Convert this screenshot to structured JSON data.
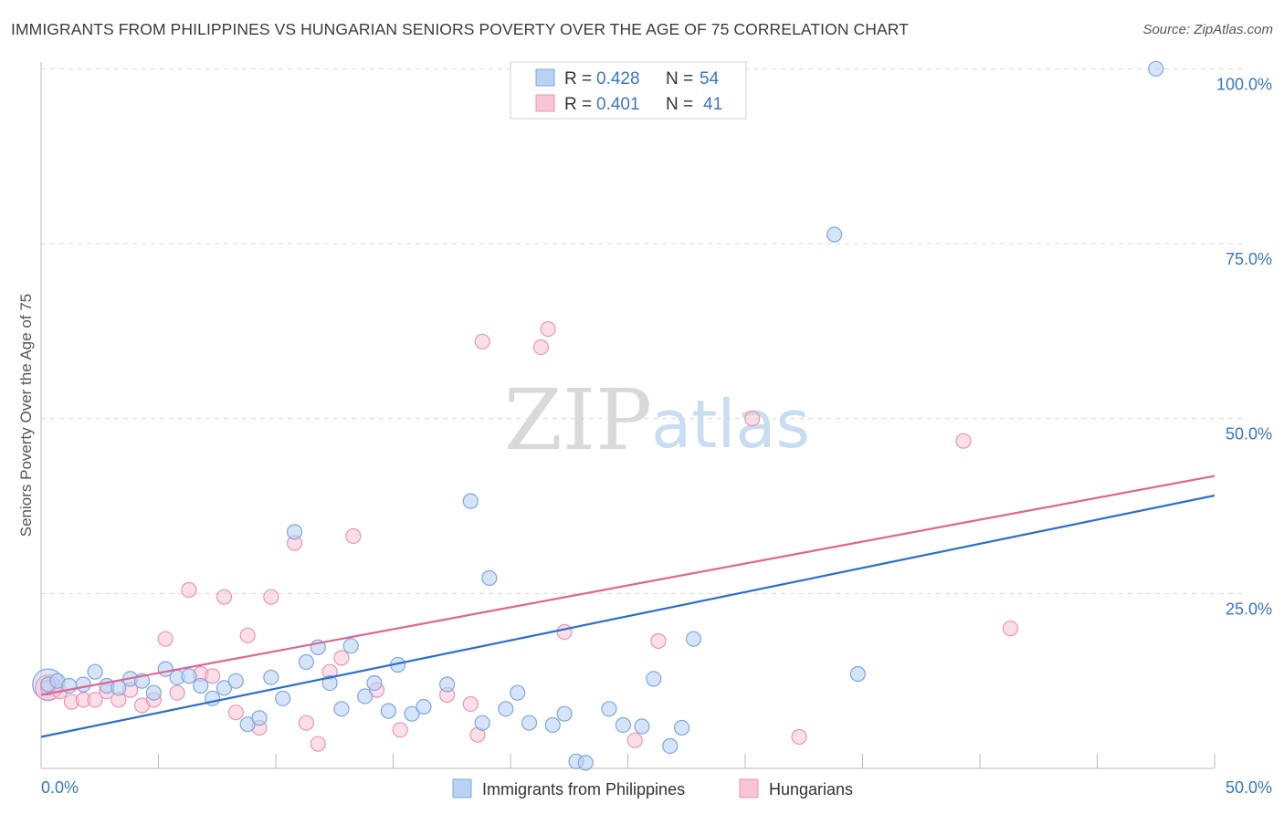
{
  "title": "IMMIGRANTS FROM PHILIPPINES VS HUNGARIAN SENIORS POVERTY OVER THE AGE OF 75 CORRELATION CHART",
  "source": "Source: ZipAtlas.com",
  "watermark": {
    "zip": "ZIP",
    "atlas": "atlas"
  },
  "colors": {
    "blue_fill": "#b9d2f3",
    "blue_stroke": "#7fa7df",
    "blue_line": "#2a6fd0",
    "pink_fill": "#f8c5d5",
    "pink_stroke": "#ee94b2",
    "pink_line": "#e0658f",
    "axis_text": "#3a74c8",
    "grid": "#d8d8d8"
  },
  "legend_top": [
    {
      "r_label": "R =",
      "r_value": "0.428",
      "n_label": "N =",
      "n_value": "54"
    },
    {
      "r_label": "R =",
      "r_value": "0.401",
      "n_label": "N =",
      "n_value": "41"
    }
  ],
  "chart_data": {
    "type": "scatter",
    "title": "IMMIGRANTS FROM PHILIPPINES VS HUNGARIAN SENIORS POVERTY OVER THE AGE OF 75 CORRELATION CHART",
    "xlabel": "",
    "ylabel": "Seniors Poverty Over the Age of 75",
    "xlim": [
      0,
      50
    ],
    "ylim": [
      0,
      102
    ],
    "x_tick_labels": [
      "0.0%",
      "50.0%"
    ],
    "y_ticks": [
      25,
      50,
      75,
      100
    ],
    "y_tick_labels": [
      "25.0%",
      "50.0%",
      "75.0%",
      "100.0%"
    ],
    "grid": "horizontal dashed",
    "legend_placement": "top-center and bottom",
    "series": [
      {
        "name": "Immigrants from Philippines",
        "color": "#b9d2f3",
        "trend": {
          "x": [
            0,
            50
          ],
          "y": [
            4.5,
            39.0
          ]
        },
        "points": [
          [
            0.3,
            12.0
          ],
          [
            0.7,
            12.5
          ],
          [
            1.2,
            11.8
          ],
          [
            1.8,
            12.0
          ],
          [
            2.3,
            13.8
          ],
          [
            2.8,
            11.8
          ],
          [
            3.3,
            11.5
          ],
          [
            3.8,
            12.8
          ],
          [
            4.3,
            12.5
          ],
          [
            4.8,
            10.8
          ],
          [
            5.3,
            14.2
          ],
          [
            5.8,
            13.0
          ],
          [
            6.3,
            13.2
          ],
          [
            6.8,
            11.8
          ],
          [
            7.3,
            10.0
          ],
          [
            7.8,
            11.5
          ],
          [
            8.3,
            12.5
          ],
          [
            8.8,
            6.3
          ],
          [
            9.3,
            7.2
          ],
          [
            9.8,
            13.0
          ],
          [
            10.3,
            10.0
          ],
          [
            10.8,
            33.8
          ],
          [
            11.3,
            15.2
          ],
          [
            11.8,
            17.3
          ],
          [
            12.3,
            12.2
          ],
          [
            12.8,
            8.5
          ],
          [
            13.2,
            17.5
          ],
          [
            13.8,
            10.3
          ],
          [
            14.2,
            12.2
          ],
          [
            14.8,
            8.2
          ],
          [
            15.2,
            14.8
          ],
          [
            15.8,
            7.8
          ],
          [
            16.3,
            8.8
          ],
          [
            17.3,
            12.0
          ],
          [
            18.3,
            38.2
          ],
          [
            18.8,
            6.5
          ],
          [
            19.1,
            27.2
          ],
          [
            19.8,
            8.5
          ],
          [
            20.3,
            10.8
          ],
          [
            20.8,
            6.5
          ],
          [
            21.8,
            6.2
          ],
          [
            22.3,
            7.8
          ],
          [
            22.8,
            1.0
          ],
          [
            23.2,
            0.8
          ],
          [
            24.2,
            8.5
          ],
          [
            24.8,
            6.2
          ],
          [
            25.6,
            6.0
          ],
          [
            26.1,
            12.8
          ],
          [
            26.8,
            3.2
          ],
          [
            27.3,
            5.8
          ],
          [
            27.8,
            18.5
          ],
          [
            33.8,
            76.3
          ],
          [
            34.8,
            13.5
          ],
          [
            47.5,
            100.0
          ]
        ]
      },
      {
        "name": "Hungarians",
        "color": "#f8c5d5",
        "trend": {
          "x": [
            0,
            50
          ],
          "y": [
            10.5,
            41.8
          ]
        },
        "points": [
          [
            0.3,
            11.5
          ],
          [
            0.8,
            11.0
          ],
          [
            1.3,
            9.5
          ],
          [
            1.8,
            9.8
          ],
          [
            2.3,
            9.8
          ],
          [
            2.8,
            11.0
          ],
          [
            3.3,
            9.8
          ],
          [
            3.8,
            11.2
          ],
          [
            4.3,
            9.0
          ],
          [
            4.8,
            9.8
          ],
          [
            5.3,
            18.5
          ],
          [
            5.8,
            10.8
          ],
          [
            6.3,
            25.5
          ],
          [
            6.8,
            13.5
          ],
          [
            7.3,
            13.2
          ],
          [
            7.8,
            24.5
          ],
          [
            8.3,
            8.0
          ],
          [
            8.8,
            19.0
          ],
          [
            9.3,
            5.8
          ],
          [
            9.8,
            24.5
          ],
          [
            10.8,
            32.2
          ],
          [
            11.3,
            6.5
          ],
          [
            11.8,
            3.5
          ],
          [
            12.3,
            13.8
          ],
          [
            12.8,
            15.8
          ],
          [
            13.3,
            33.2
          ],
          [
            14.3,
            11.2
          ],
          [
            15.3,
            5.5
          ],
          [
            17.3,
            10.5
          ],
          [
            18.3,
            9.2
          ],
          [
            18.6,
            4.8
          ],
          [
            18.8,
            61.0
          ],
          [
            21.3,
            60.2
          ],
          [
            21.6,
            62.8
          ],
          [
            22.3,
            19.5
          ],
          [
            25.3,
            4.0
          ],
          [
            26.3,
            18.2
          ],
          [
            30.3,
            50.0
          ],
          [
            32.3,
            4.5
          ],
          [
            39.3,
            46.8
          ],
          [
            41.3,
            20.0
          ]
        ]
      }
    ]
  },
  "bottom_legend": [
    "Immigrants from Philippines",
    "Hungarians"
  ]
}
